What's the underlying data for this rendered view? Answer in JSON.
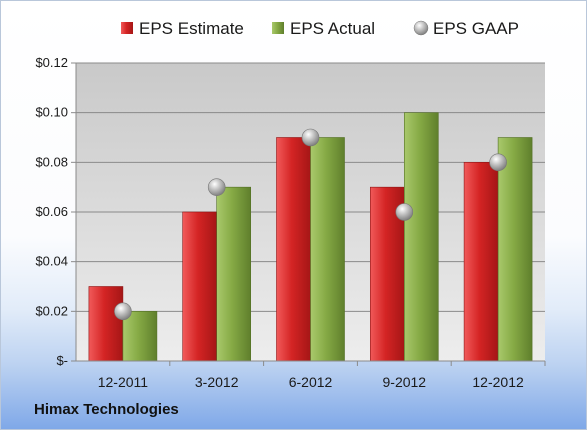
{
  "chart_data": {
    "type": "bar",
    "categories": [
      "12-2011",
      "3-2012",
      "6-2012",
      "9-2012",
      "12-2012"
    ],
    "series": [
      {
        "name": "EPS Estimate",
        "type": "bar",
        "color": "#d42a2a",
        "values": [
          0.03,
          0.06,
          0.09,
          0.07,
          0.08
        ]
      },
      {
        "name": "EPS Actual",
        "type": "bar",
        "color": "#86aa45",
        "values": [
          0.02,
          0.07,
          0.09,
          0.1,
          0.09
        ]
      },
      {
        "name": "EPS GAAP",
        "type": "scatter",
        "color": "#b8b8b8",
        "values": [
          0.02,
          0.07,
          0.09,
          0.06,
          0.08
        ]
      }
    ],
    "ylim": [
      0,
      0.12
    ],
    "yticks": [
      0,
      0.02,
      0.04,
      0.06,
      0.08,
      0.1,
      0.12
    ],
    "ytick_labels": [
      "$-",
      "$0.02",
      "$0.04",
      "$0.06",
      "$0.08",
      "$0.10",
      "$0.12"
    ],
    "grid": true,
    "legend": "top"
  },
  "footer": {
    "company": "Himax Technologies"
  }
}
